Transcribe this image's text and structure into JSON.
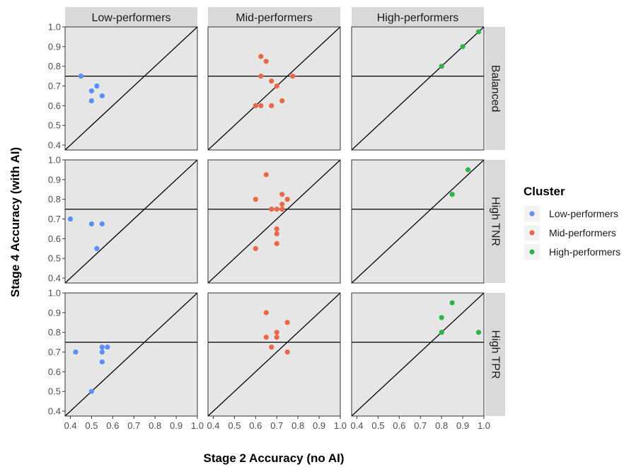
{
  "chart_data": {
    "type": "scatter",
    "facet_columns": [
      "Low-performers",
      "Mid-performers",
      "High-performers"
    ],
    "facet_rows": [
      "Balanced",
      "High TNR",
      "High TPR"
    ],
    "xlabel": "Stage 2 Accuracy (no AI)",
    "ylabel": "Stage 4 Accuracy (with AI)",
    "xlim": [
      0.375,
      1.0
    ],
    "ylim": [
      0.375,
      1.0
    ],
    "x_ticks": [
      0.4,
      0.5,
      0.6,
      0.7,
      0.8,
      0.9,
      1.0
    ],
    "x_tick_labels": [
      "0.4",
      "0.5",
      "0.6",
      "0.7",
      "0.8",
      "0.9",
      "1.0"
    ],
    "y_ticks": [
      0.4,
      0.5,
      0.6,
      0.7,
      0.8,
      0.9,
      1.0
    ],
    "y_tick_labels": [
      "0.4",
      "0.5",
      "0.6",
      "0.7",
      "0.8",
      "0.9",
      "1.0"
    ],
    "reference_lines": {
      "horizontal_y": 0.75,
      "diagonal": "y = x"
    },
    "grid": false,
    "legend": {
      "title": "Cluster",
      "placement": "right",
      "entries": [
        {
          "label": "Low-performers",
          "color": "#5B8FF9"
        },
        {
          "label": "Mid-performers",
          "color": "#E8694A"
        },
        {
          "label": "High-performers",
          "color": "#2DB54B"
        }
      ]
    },
    "panels": [
      {
        "row": "Balanced",
        "col": "Low-performers",
        "color": "#5B8FF9",
        "points": [
          [
            0.45,
            0.75
          ],
          [
            0.5,
            0.675
          ],
          [
            0.525,
            0.7
          ],
          [
            0.55,
            0.65
          ],
          [
            0.5,
            0.625
          ]
        ]
      },
      {
        "row": "Balanced",
        "col": "Mid-performers",
        "color": "#E8694A",
        "points": [
          [
            0.625,
            0.85
          ],
          [
            0.65,
            0.825
          ],
          [
            0.625,
            0.75
          ],
          [
            0.775,
            0.75
          ],
          [
            0.675,
            0.725
          ],
          [
            0.7,
            0.7
          ],
          [
            0.725,
            0.625
          ],
          [
            0.6,
            0.6
          ],
          [
            0.625,
            0.6
          ],
          [
            0.675,
            0.6
          ]
        ]
      },
      {
        "row": "Balanced",
        "col": "High-performers",
        "color": "#2DB54B",
        "points": [
          [
            0.975,
            0.975
          ],
          [
            0.9,
            0.9
          ],
          [
            0.8,
            0.8
          ]
        ]
      },
      {
        "row": "High TNR",
        "col": "Low-performers",
        "color": "#5B8FF9",
        "points": [
          [
            0.4,
            0.7
          ],
          [
            0.5,
            0.675
          ],
          [
            0.55,
            0.675
          ],
          [
            0.525,
            0.55
          ]
        ]
      },
      {
        "row": "High TNR",
        "col": "Mid-performers",
        "color": "#E8694A",
        "points": [
          [
            0.65,
            0.925
          ],
          [
            0.725,
            0.825
          ],
          [
            0.6,
            0.8
          ],
          [
            0.75,
            0.8
          ],
          [
            0.725,
            0.775
          ],
          [
            0.675,
            0.75
          ],
          [
            0.7,
            0.75
          ],
          [
            0.725,
            0.75
          ],
          [
            0.7,
            0.65
          ],
          [
            0.7,
            0.625
          ],
          [
            0.7,
            0.575
          ],
          [
            0.6,
            0.55
          ]
        ]
      },
      {
        "row": "High TNR",
        "col": "High-performers",
        "color": "#2DB54B",
        "points": [
          [
            0.925,
            0.95
          ],
          [
            0.85,
            0.825
          ]
        ]
      },
      {
        "row": "High TPR",
        "col": "Low-performers",
        "color": "#5B8FF9",
        "points": [
          [
            0.425,
            0.7
          ],
          [
            0.55,
            0.725
          ],
          [
            0.575,
            0.725
          ],
          [
            0.55,
            0.7
          ],
          [
            0.55,
            0.65
          ],
          [
            0.5,
            0.5
          ]
        ]
      },
      {
        "row": "High TPR",
        "col": "Mid-performers",
        "color": "#E8694A",
        "points": [
          [
            0.65,
            0.9
          ],
          [
            0.75,
            0.85
          ],
          [
            0.7,
            0.8
          ],
          [
            0.65,
            0.775
          ],
          [
            0.7,
            0.775
          ],
          [
            0.675,
            0.725
          ],
          [
            0.75,
            0.7
          ]
        ]
      },
      {
        "row": "High TPR",
        "col": "High-performers",
        "color": "#2DB54B",
        "points": [
          [
            0.85,
            0.95
          ],
          [
            0.8,
            0.875
          ],
          [
            0.8,
            0.8
          ],
          [
            0.975,
            0.8
          ]
        ]
      }
    ]
  }
}
